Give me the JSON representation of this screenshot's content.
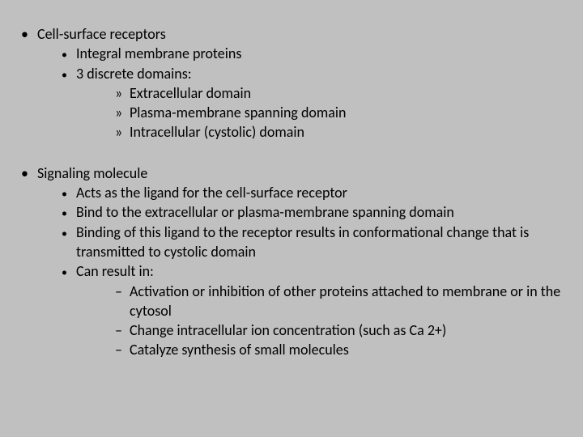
{
  "background_color": "#c0c0c0",
  "text_color": "#000000",
  "font_family": "Calibri",
  "base_fontsize_pt": 18,
  "blocks": [
    {
      "l1": "Cell-surface receptors",
      "l2": [
        {
          "text": "Integral membrane proteins"
        },
        {
          "text": "3 discrete domains:",
          "l3_style": "chevron",
          "l3": [
            "Extracellular domain",
            "Plasma-membrane spanning domain",
            "Intracellular (cystolic) domain"
          ]
        }
      ]
    },
    {
      "l1": "Signaling molecule",
      "l2": [
        {
          "text": "Acts as the ligand for the cell-surface receptor"
        },
        {
          "text": "Bind to the extracellular or plasma-membrane spanning domain"
        },
        {
          "text": "Binding of this ligand to the receptor results in conformational change that is transmitted to cystolic domain"
        },
        {
          "text": "Can result in:",
          "l3_style": "dash",
          "l3": [
            "Activation or inhibition of other proteins attached to membrane or in the cytosol",
            "Change intracellular ion concentration (such as Ca 2+)",
            "Catalyze synthesis of small molecules"
          ]
        }
      ]
    }
  ]
}
